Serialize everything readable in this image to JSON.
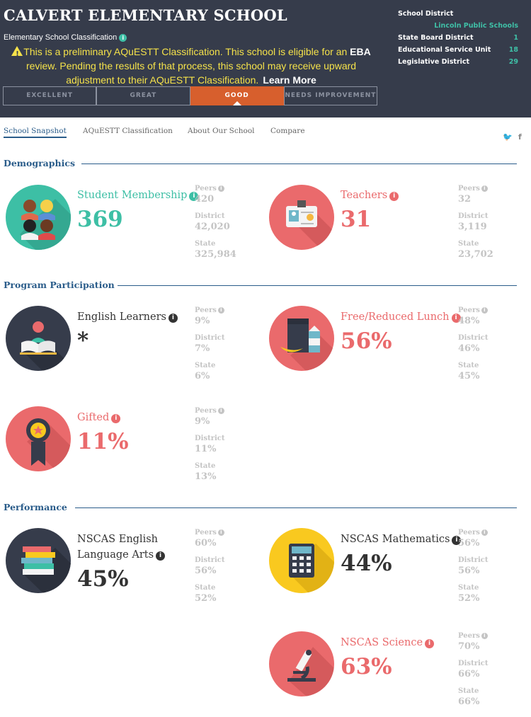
{
  "header": {
    "school_name": "CALVERT ELEMENTARY SCHOOL",
    "classification_label": "Elementary School Classification",
    "notice_1": "This is a preliminary AQuESTT Classification. This school is eligible for an ",
    "notice_eba": "EBA",
    "notice_2": " review. Pending the results of that process, this school may receive upward adjustment to their AQuESTT Classification.",
    "learn_more": "Learn More",
    "tabs": [
      "EXCELLENT",
      "GREAT",
      "GOOD",
      "NEEDS IMPROVEMENT"
    ],
    "active_tab": "GOOD",
    "district": {
      "school_district_label": "School District",
      "school_district_value": "Lincoln Public Schools",
      "state_board_label": "State Board District",
      "state_board_value": "1",
      "esu_label": "Educational Service Unit",
      "esu_value": "18",
      "legislative_label": "Legislative District",
      "legislative_value": "29"
    }
  },
  "nav": {
    "items": [
      "School Snapshot",
      "AQuESTT Classification",
      "About Our School",
      "Compare"
    ],
    "twitter": "twitter-icon",
    "facebook": "facebook-icon"
  },
  "sections": {
    "demographics": "Demographics",
    "program": "Program Participation",
    "performance": "Performance"
  },
  "stat_labels": {
    "peers": "Peers",
    "district": "District",
    "state": "State"
  },
  "metrics": {
    "membership": {
      "label": "Student Membership",
      "value": "369",
      "peers": "420",
      "district": "42,020",
      "state": "325,984"
    },
    "teachers": {
      "label": "Teachers",
      "value": "31",
      "peers": "32",
      "district": "3,119",
      "state": "23,702"
    },
    "english_learners": {
      "label": "English Learners",
      "value": "*",
      "peers": "9%",
      "district": "7%",
      "state": "6%"
    },
    "lunch": {
      "label": "Free/Reduced Lunch",
      "value": "56%",
      "peers": "48%",
      "district": "46%",
      "state": "45%"
    },
    "gifted": {
      "label": "Gifted",
      "value": "11%",
      "peers": "9%",
      "district": "11%",
      "state": "13%"
    },
    "ela": {
      "label_1": "NSCAS English",
      "label_2": "Language Arts",
      "value": "45%",
      "peers": "60%",
      "district": "56%",
      "state": "52%"
    },
    "math": {
      "label": "NSCAS Mathematics",
      "value": "44%",
      "peers": "56%",
      "district": "56%",
      "state": "52%"
    },
    "science": {
      "label": "NSCAS Science",
      "value": "63%",
      "peers": "70%",
      "district": "66%",
      "state": "66%"
    }
  },
  "colors": {
    "header_bg": "#363c4b",
    "teal": "#3dbfa5",
    "coral": "#ea6a6c",
    "good_tab": "#d75f2d",
    "yellow": "#f9c91f",
    "navy": "#2a5c8a"
  }
}
